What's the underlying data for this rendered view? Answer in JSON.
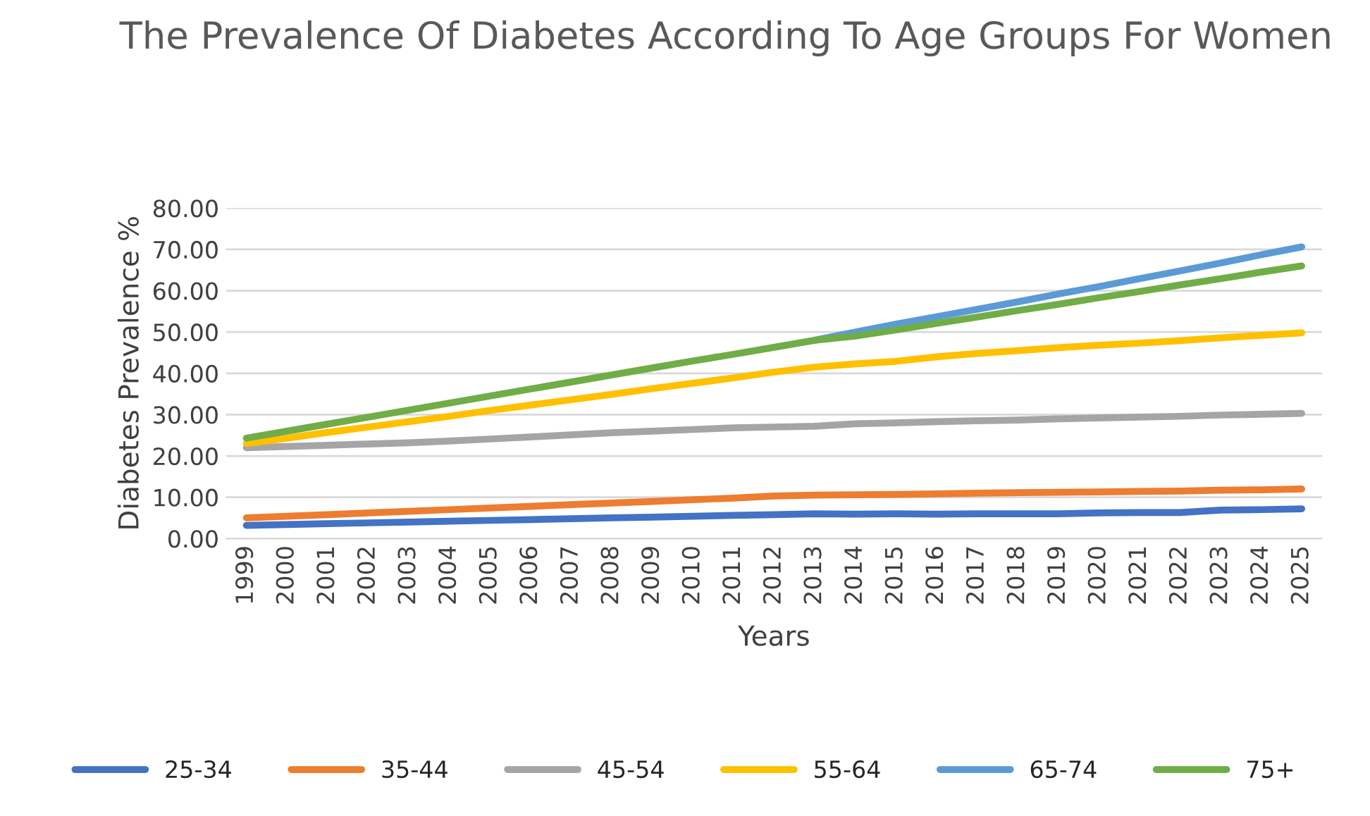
{
  "chart_data": {
    "type": "line",
    "title": "The Prevalence Of Diabetes According To Age Groups For Women",
    "xlabel": "Years",
    "ylabel": "Diabetes Prevalence %",
    "categories": [
      "1999",
      "2000",
      "2001",
      "2002",
      "2003",
      "2004",
      "2005",
      "2006",
      "2007",
      "2008",
      "2009",
      "2010",
      "2011",
      "2012",
      "2013",
      "2014",
      "2015",
      "2016",
      "2017",
      "2018",
      "2019",
      "2020",
      "2021",
      "2022",
      "2023",
      "2024",
      "2025"
    ],
    "series": [
      {
        "name": "25-34",
        "color": "#4472c4",
        "values": [
          3.2,
          3.4,
          3.6,
          3.8,
          4.0,
          4.2,
          4.4,
          4.6,
          4.8,
          5.0,
          5.2,
          5.4,
          5.6,
          5.8,
          6.0,
          5.9,
          6.0,
          5.9,
          6.0,
          6.0,
          6.0,
          6.2,
          6.3,
          6.3,
          6.9,
          7.0,
          7.2
        ]
      },
      {
        "name": "35-44",
        "color": "#ed7d31",
        "values": [
          5.0,
          5.4,
          5.8,
          6.2,
          6.6,
          7.0,
          7.4,
          7.8,
          8.2,
          8.6,
          9.0,
          9.4,
          9.8,
          10.3,
          10.5,
          10.6,
          10.7,
          10.8,
          11.0,
          11.1,
          11.2,
          11.3,
          11.4,
          11.5,
          11.7,
          11.8,
          12.0
        ]
      },
      {
        "name": "45-54",
        "color": "#a5a5a5",
        "values": [
          22.0,
          22.3,
          22.6,
          22.9,
          23.2,
          23.6,
          24.1,
          24.6,
          25.1,
          25.6,
          26.0,
          26.4,
          26.8,
          27.0,
          27.2,
          27.8,
          28.0,
          28.3,
          28.5,
          28.7,
          29.0,
          29.2,
          29.4,
          29.6,
          29.9,
          30.1,
          30.3
        ]
      },
      {
        "name": "55-64",
        "color": "#ffc000",
        "values": [
          23.0,
          24.3,
          25.7,
          27.0,
          28.3,
          29.6,
          31.0,
          32.3,
          33.6,
          34.9,
          36.3,
          37.6,
          38.9,
          40.3,
          41.5,
          42.3,
          42.9,
          44.0,
          44.8,
          45.5,
          46.2,
          46.8,
          47.3,
          47.9,
          48.6,
          49.2,
          49.8
        ]
      },
      {
        "name": "65-74",
        "color": "#5b9bd5",
        "values": [
          null,
          null,
          null,
          null,
          null,
          null,
          null,
          null,
          null,
          null,
          null,
          null,
          null,
          null,
          48.0,
          50.0,
          51.9,
          53.7,
          55.5,
          57.3,
          59.2,
          61.0,
          62.9,
          64.8,
          66.7,
          68.7,
          70.6
        ]
      },
      {
        "name": "75+",
        "color": "#70ad47",
        "values": [
          24.3,
          26.0,
          27.7,
          29.4,
          31.1,
          32.8,
          34.5,
          36.2,
          37.9,
          39.6,
          41.3,
          43.0,
          44.6,
          46.3,
          48.0,
          49.0,
          50.5,
          52.1,
          53.6,
          55.2,
          56.7,
          58.3,
          59.8,
          61.4,
          62.9,
          64.5,
          66.0
        ]
      }
    ],
    "ylim": [
      0,
      80
    ],
    "yticks": [
      {
        "value": 0,
        "label": "0.00"
      },
      {
        "value": 10,
        "label": "10.00"
      },
      {
        "value": 20,
        "label": "20.00"
      },
      {
        "value": 30,
        "label": "30.00"
      },
      {
        "value": 40,
        "label": "40.00"
      },
      {
        "value": 50,
        "label": "50.00"
      },
      {
        "value": 60,
        "label": "60.00"
      },
      {
        "value": 70,
        "label": "70.00"
      },
      {
        "value": 80,
        "label": "80.00"
      }
    ],
    "grid": "y",
    "legend": "bottom",
    "marker": "none",
    "line_style": "solid"
  }
}
